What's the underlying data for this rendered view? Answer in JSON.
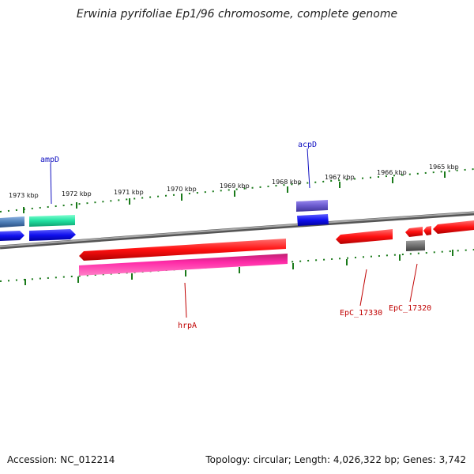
{
  "title": "Erwinia pyrifoliae Ep1/96 chromosome, complete genome",
  "footer": {
    "accession": "Accession: NC_012214",
    "summary": "Topology: circular; Length: 4,026,322 bp; Genes: 3,742"
  },
  "ruler": {
    "labels": [
      "1973 kbp",
      "1972 kbp",
      "1971 kbp",
      "1970 kbp",
      "1969 kbp",
      "1968 kbp",
      "1967 kbp",
      "1966 kbp",
      "1965 kbp"
    ]
  },
  "genes": {
    "ampD": "ampD",
    "acpD": "acpD",
    "hrpA": "hrpA",
    "EpC_17330": "EpC_17330",
    "EpC_17320": "EpC_17320"
  },
  "colors": {
    "backbone": "#808080",
    "tick": "#1a7a1a",
    "label_blue": "#1010c0",
    "label_red": "#c00000",
    "red_gene": "#ff1010",
    "pink_gene": "#ff2aa8",
    "blue_gene": "#1010ee",
    "green_gene": "#20e0a0",
    "steel_gene": "#4f7fb8",
    "purple_gene": "#6a5acd",
    "gray_gene": "#707070"
  }
}
